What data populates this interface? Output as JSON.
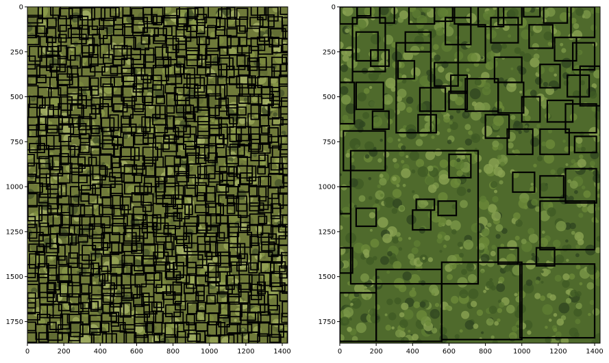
{
  "chart_data": [
    {
      "type": "image",
      "panel": "left",
      "xlim": [
        0,
        1430
      ],
      "ylim": [
        1870,
        0
      ],
      "xticks": [
        0,
        200,
        400,
        600,
        800,
        1000,
        1200,
        1400
      ],
      "yticks": [
        0,
        250,
        500,
        750,
        1000,
        1250,
        1500,
        1750
      ],
      "grid": false,
      "image": "aerial forest canopy (olive-tinted) with dense, small black tree-crown bounding boxes",
      "box_color": "#000000",
      "box_density": "dense"
    },
    {
      "type": "image",
      "panel": "right",
      "xlim": [
        0,
        1430
      ],
      "ylim": [
        1870,
        0
      ],
      "xticks": [
        0,
        200,
        400,
        600,
        800,
        1000,
        1200,
        1400
      ],
      "yticks": [
        0,
        250,
        500,
        750,
        1000,
        1250,
        1500,
        1750
      ],
      "grid": false,
      "image": "aerial forest canopy (natural green) with sparse, mostly larger black tree-crown bounding boxes",
      "box_color": "#000000",
      "box_density": "sparse",
      "boxes": [
        [
          0,
          0,
          95,
          95
        ],
        [
          95,
          0,
          170,
          50
        ],
        [
          220,
          0,
          300,
          90
        ],
        [
          380,
          0,
          520,
          95
        ],
        [
          520,
          0,
          620,
          80
        ],
        [
          630,
          0,
          720,
          95
        ],
        [
          760,
          0,
          900,
          110
        ],
        [
          870,
          0,
          1000,
          100
        ],
        [
          1010,
          0,
          1100,
          55
        ],
        [
          1120,
          0,
          1250,
          90
        ],
        [
          1270,
          0,
          1400,
          170
        ],
        [
          70,
          60,
          250,
          360
        ],
        [
          90,
          140,
          210,
          300
        ],
        [
          360,
          140,
          500,
          250
        ],
        [
          580,
          60,
          720,
          210
        ],
        [
          650,
          100,
          800,
          310
        ],
        [
          830,
          60,
          980,
          200
        ],
        [
          1040,
          100,
          1170,
          230
        ],
        [
          1180,
          170,
          1300,
          300
        ],
        [
          1280,
          200,
          1400,
          350
        ],
        [
          0,
          240,
          70,
          420
        ],
        [
          170,
          240,
          270,
          330
        ],
        [
          320,
          300,
          410,
          400
        ],
        [
          520,
          310,
          650,
          440
        ],
        [
          610,
          380,
          700,
          480
        ],
        [
          850,
          280,
          1000,
          420
        ],
        [
          1100,
          320,
          1210,
          450
        ],
        [
          1250,
          380,
          1370,
          500
        ],
        [
          1320,
          330,
          1430,
          550
        ],
        [
          0,
          420,
          80,
          650
        ],
        [
          90,
          420,
          240,
          570
        ],
        [
          440,
          450,
          580,
          580
        ],
        [
          600,
          470,
          700,
          570
        ],
        [
          690,
          400,
          870,
          580
        ],
        [
          870,
          420,
          1010,
          590
        ],
        [
          1000,
          500,
          1100,
          640
        ],
        [
          1140,
          520,
          1280,
          640
        ],
        [
          1240,
          540,
          1410,
          700
        ],
        [
          180,
          580,
          270,
          680
        ],
        [
          430,
          600,
          530,
          700
        ],
        [
          310,
          200,
          500,
          700
        ],
        [
          800,
          600,
          930,
          730
        ],
        [
          920,
          680,
          1060,
          820
        ],
        [
          1100,
          680,
          1260,
          820
        ],
        [
          1290,
          720,
          1410,
          810
        ],
        [
          20,
          690,
          250,
          910
        ],
        [
          60,
          800,
          760,
          1540
        ],
        [
          600,
          820,
          720,
          950
        ],
        [
          950,
          920,
          1070,
          1030
        ],
        [
          1100,
          940,
          1230,
          1060
        ],
        [
          1240,
          900,
          1410,
          1090
        ],
        [
          0,
          1000,
          60,
          1150
        ],
        [
          90,
          1120,
          200,
          1220
        ],
        [
          420,
          1070,
          520,
          1130
        ],
        [
          400,
          1130,
          500,
          1240
        ],
        [
          540,
          1080,
          640,
          1160
        ],
        [
          1100,
          1080,
          1400,
          1350
        ],
        [
          0,
          1340,
          70,
          1480
        ],
        [
          870,
          1340,
          980,
          1430
        ],
        [
          1080,
          1340,
          1180,
          1440
        ],
        [
          200,
          1460,
          560,
          1860
        ],
        [
          560,
          1420,
          1000,
          1850
        ],
        [
          990,
          1430,
          1400,
          1840
        ],
        [
          0,
          1590,
          200,
          1860
        ]
      ]
    }
  ]
}
